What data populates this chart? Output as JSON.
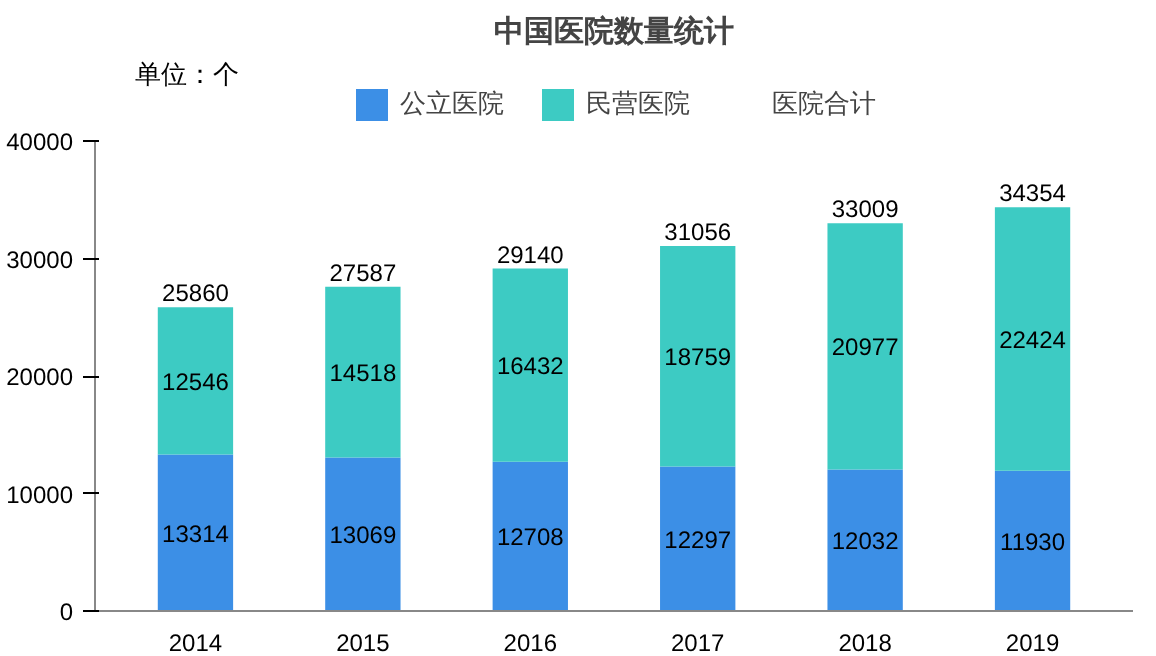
{
  "chart_data": {
    "type": "bar",
    "title": "中国医院数量统计",
    "ylabel": "单位：个",
    "stacked": true,
    "data_labels": true,
    "legend": "top",
    "categories": [
      "2014",
      "2015",
      "2016",
      "2017",
      "2018",
      "2019"
    ],
    "series": [
      {
        "name": "公立医院",
        "color": "#3c8fe6",
        "values": [
          13314,
          13069,
          12708,
          12297,
          12032,
          11930
        ]
      },
      {
        "name": "民营医院",
        "color": "#3dcbc3",
        "values": [
          12546,
          14518,
          16432,
          18759,
          20977,
          22424
        ]
      }
    ],
    "totals": [
      "25860",
      "27587",
      "29140",
      "31056",
      "33009",
      "34354"
    ],
    "annotations": [
      "医院合计"
    ],
    "ylim": [
      0,
      40000
    ],
    "yticks": [
      0,
      10000,
      20000,
      30000,
      40000
    ],
    "grid": false
  }
}
